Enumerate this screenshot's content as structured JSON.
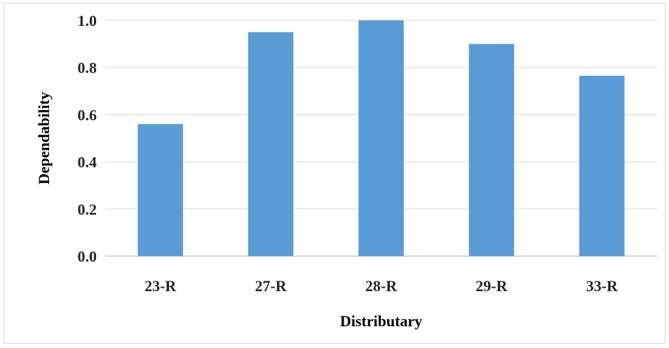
{
  "chart_data": {
    "type": "bar",
    "title": "",
    "xlabel": "Distributary",
    "ylabel": "Dependability",
    "categories": [
      "23-R",
      "27-R",
      "28-R",
      "29-R",
      "33-R"
    ],
    "values": [
      0.56,
      0.95,
      1.0,
      0.9,
      0.765
    ],
    "ylim": [
      0,
      1.0
    ],
    "yticks": [
      "0.0",
      "0.2",
      "0.4",
      "0.6",
      "0.8",
      "1.0"
    ],
    "grid": true,
    "legend": "none",
    "bar_color": "#5B9BD5"
  }
}
